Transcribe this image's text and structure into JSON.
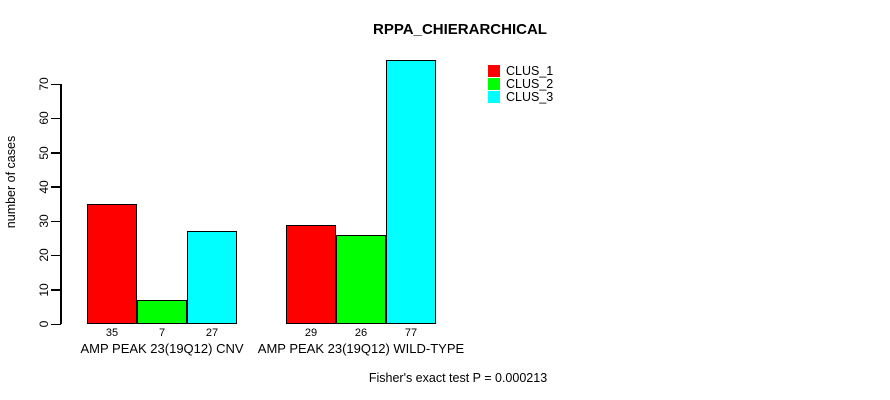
{
  "chart_data": {
    "type": "bar",
    "title": "RPPA_CHIERARCHICAL",
    "ylabel": "number of cases",
    "xlabel": "",
    "categories": [
      "AMP PEAK 23(19Q12) CNV",
      "AMP PEAK 23(19Q12) WILD-TYPE"
    ],
    "series": [
      {
        "name": "CLUS_1",
        "color": "#FF0000",
        "values": [
          35,
          29
        ]
      },
      {
        "name": "CLUS_2",
        "color": "#00FF00",
        "values": [
          7,
          26
        ]
      },
      {
        "name": "CLUS_3",
        "color": "#00FFFF",
        "values": [
          27,
          77
        ]
      }
    ],
    "yticks": [
      0,
      10,
      20,
      30,
      40,
      50,
      60,
      70
    ],
    "ylim": [
      0,
      77
    ],
    "grid": false,
    "legend_position": "top-right",
    "bar_value_labels_shown": true,
    "annotation": "Fisher's exact test P = 0.000213"
  }
}
